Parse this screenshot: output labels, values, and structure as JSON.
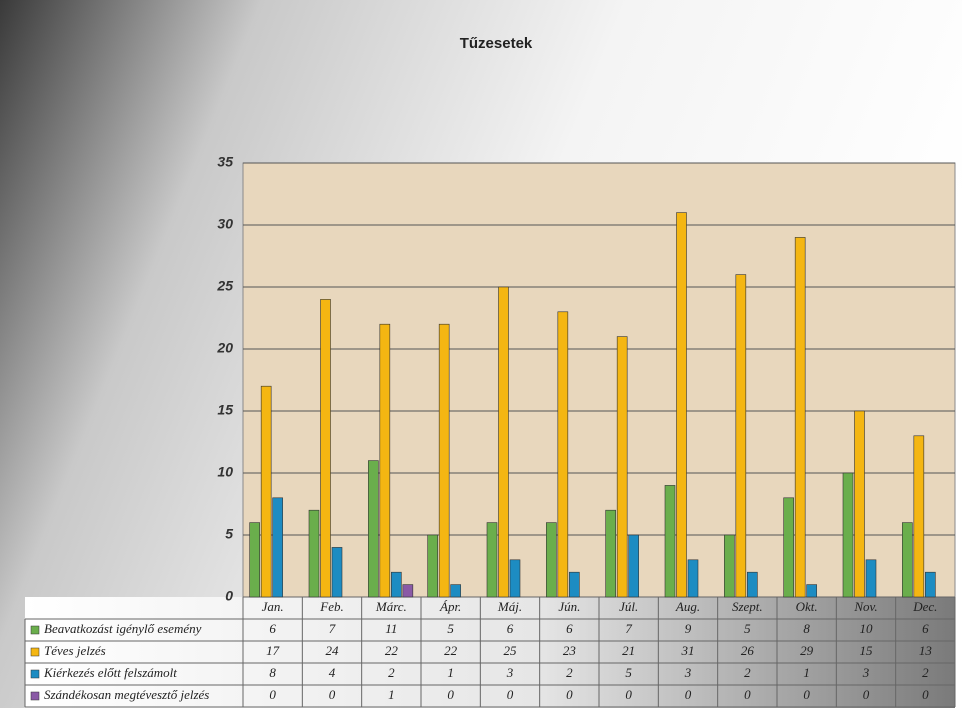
{
  "chart_data": {
    "type": "bar",
    "title": "Tűzesetek",
    "categories": [
      "Jan.",
      "Feb.",
      "Márc.",
      "Ápr.",
      "Máj.",
      "Jún.",
      "Júl.",
      "Aug.",
      "Szept.",
      "Okt.",
      "Nov.",
      "Dec."
    ],
    "series": [
      {
        "name": "Beavatkozást igénylő esemény",
        "color": "#6aae4c",
        "values": [
          6,
          7,
          11,
          5,
          6,
          6,
          7,
          9,
          5,
          8,
          10,
          6
        ]
      },
      {
        "name": "Téves jelzés",
        "color": "#f4b612",
        "values": [
          17,
          24,
          22,
          22,
          25,
          23,
          21,
          31,
          26,
          29,
          15,
          13
        ]
      },
      {
        "name": "Kiérkezés előtt felszámolt",
        "color": "#1d8cc2",
        "values": [
          8,
          4,
          2,
          1,
          3,
          2,
          5,
          3,
          2,
          1,
          3,
          2
        ]
      },
      {
        "name": "Szándékosan megtévesztő jelzés",
        "color": "#8a5aa6",
        "values": [
          0,
          0,
          1,
          0,
          0,
          0,
          0,
          0,
          0,
          0,
          0,
          0
        ]
      }
    ],
    "ylim": [
      0,
      35
    ],
    "yticks": [
      0,
      5,
      10,
      15,
      20,
      25,
      30,
      35
    ],
    "grid": true
  }
}
